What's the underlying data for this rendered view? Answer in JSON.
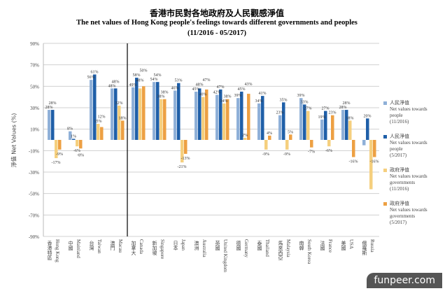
{
  "chart_data": {
    "type": "bar",
    "title_zh": "香港市民對各地政府及人民觀感淨值",
    "title": "The net values of Hong Kong people's feelings towards different governments  and peoples",
    "subtitle": "(11/2016 - 05/2017)",
    "ylabel": "淨值 Net Values (%)",
    "ylim": [
      -90,
      90
    ],
    "yticks": [
      90,
      70,
      50,
      30,
      10,
      -10,
      -30,
      -50,
      -70,
      -90
    ],
    "ytick_labels": [
      "90%",
      "70%",
      "50%",
      "30%",
      "10%",
      "-10%",
      "-30%",
      "-50%",
      "-70%",
      "-90%"
    ],
    "grid": true,
    "legend_position": "right",
    "categories": [
      {
        "en": "Hong Kong",
        "zh": "香港特區"
      },
      {
        "en": "Mainland",
        "zh": "中國"
      },
      {
        "en": "Taiwan",
        "zh": "台灣"
      },
      {
        "en": "Macau",
        "zh": "澳門"
      },
      {
        "en": "Canada",
        "zh": "加拿大"
      },
      {
        "en": "Singapore",
        "zh": "新加坡"
      },
      {
        "en": "Japan",
        "zh": "日本"
      },
      {
        "en": "Australia",
        "zh": "澳洲"
      },
      {
        "en": "United Kingdom",
        "zh": "英國"
      },
      {
        "en": "Germany",
        "zh": "德國"
      },
      {
        "en": "Thailand",
        "zh": "泰國"
      },
      {
        "en": "Malaysia",
        "zh": "馬來西亞"
      },
      {
        "en": "South Korea",
        "zh": "南韓"
      },
      {
        "en": "France",
        "zh": "法國"
      },
      {
        "en": "USA",
        "zh": "美國"
      },
      {
        "en": "Russia",
        "zh": "俄羅斯"
      }
    ],
    "series": [
      {
        "name_zh": "人民淨值",
        "name": "Net values towards people",
        "period": "(11/2016)",
        "color": "#8fb0d8",
        "values": [
          28,
          8,
          56,
          48,
          49,
          54,
          46,
          45,
          42,
          39,
          34,
          23,
          39,
          19,
          28,
          -5
        ],
        "labels": [
          "28%",
          "8%",
          "56%",
          "48%",
          "49%",
          "54%",
          "46%",
          "45%",
          "42%",
          "39%",
          "34%",
          "23%",
          "39%",
          "19%",
          "28%",
          ""
        ]
      },
      {
        "name_zh": "人民淨值",
        "name": "Net values towards people",
        "period": "(5/2017)",
        "color": "#1f5fa8",
        "values": [
          28,
          1,
          61,
          48,
          58,
          54,
          53,
          48,
          47,
          45,
          41,
          35,
          33,
          27,
          28,
          20
        ],
        "labels": [
          "28%",
          "1%",
          "61%",
          "48%",
          "58%",
          "54%",
          "53%",
          "48%",
          "47%",
          "45%",
          "41%",
          "35%",
          "33%",
          "27%",
          "28%",
          "20%"
        ]
      },
      {
        "name_zh": "政府淨值",
        "name": "Net values towards governments",
        "period": "(11/2016)",
        "color": "#f5cf7e",
        "values": [
          -17,
          -6,
          15,
          32,
          48,
          38,
          -21,
          40,
          34,
          2,
          -9,
          -9,
          27,
          -6,
          18,
          -46
        ],
        "labels": [
          "-17%",
          "-6%",
          "15%",
          "32%",
          "48%",
          "38%",
          "-21%",
          "40%",
          "34%",
          "2%",
          "-9%",
          "-9%",
          "27%",
          "-6%",
          "18%",
          ""
        ]
      },
      {
        "name_zh": "政府淨值",
        "name": "Net values towards governments",
        "period": "(5/2017)",
        "color": "#eda043",
        "values": [
          -9,
          -8,
          12,
          18,
          50,
          38,
          -13,
          47,
          38,
          43,
          4,
          5,
          -7,
          23,
          -16,
          -16
        ],
        "labels": [
          "-9%",
          "-8%",
          "12%",
          "18%",
          "50%",
          "38%",
          "-13%",
          "47%",
          "38%",
          "43%",
          "4%",
          "5%",
          "-7%",
          "23%",
          "-16%",
          "-16%"
        ]
      }
    ]
  },
  "watermark": "funpeer.com"
}
